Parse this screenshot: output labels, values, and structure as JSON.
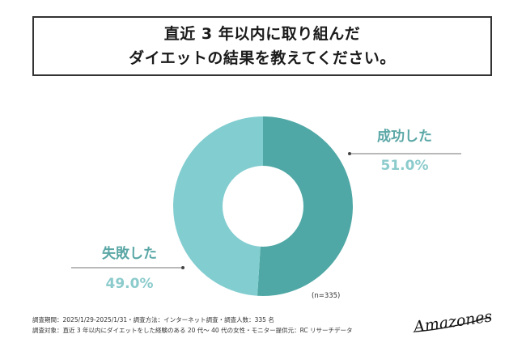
{
  "title": {
    "line1": "直近 3 年以内に取り組んだ",
    "line2": "ダイエットの結果を教えてください。"
  },
  "chart_data": {
    "type": "pie",
    "style": "donut",
    "categories": [
      "成功した",
      "失敗した"
    ],
    "values": [
      51.0,
      49.0
    ],
    "value_labels": [
      "51.0%",
      "49.0%"
    ],
    "colors": [
      "#4fa8a5",
      "#82cdd0"
    ],
    "sample_note": "(n=335)"
  },
  "footer": {
    "line1": "調査期間：2025/1/29-2025/1/31・調査方法：インターネット調査・調査人数：335 名",
    "line2": "調査対象：直近 3 年以内にダイエットをした経験のある 20 代〜 40 代の女性・モニター提供元：RC リサーチデータ"
  },
  "brand": {
    "logo_text": "Amazones"
  }
}
